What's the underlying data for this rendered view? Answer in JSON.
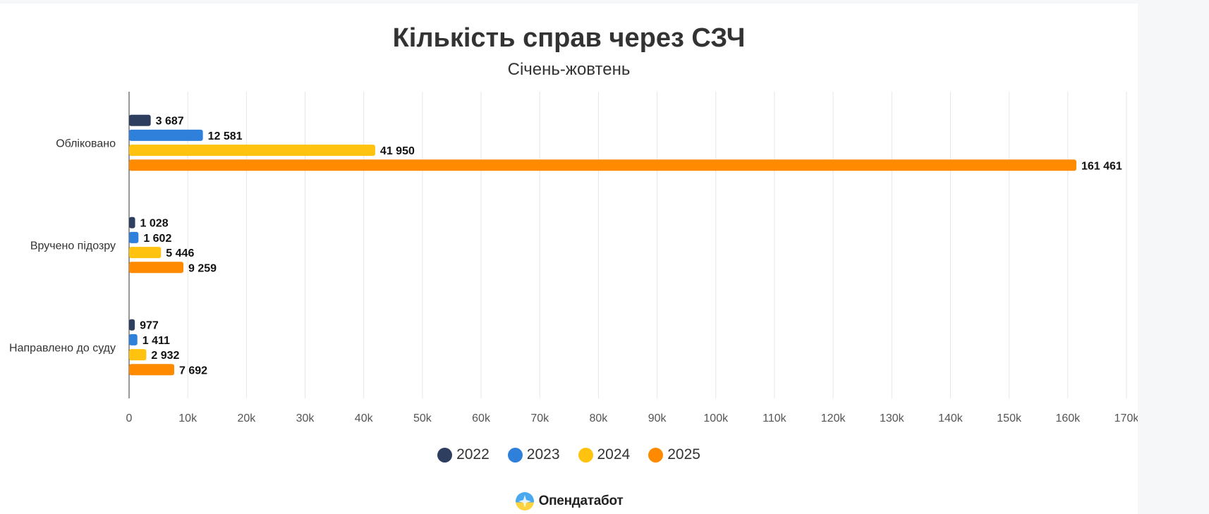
{
  "colors": {
    "s2022": "#2e3e5e",
    "s2023": "#2f80db",
    "s2024": "#ffc20e",
    "s2025": "#ff8a00"
  },
  "logo_text": "Опендатабот",
  "chart_data": {
    "type": "bar",
    "orientation": "horizontal",
    "title": "Кількість справ через СЗЧ",
    "subtitle": "Січень-жовтень",
    "categories": [
      "Обліковано",
      "Вручено підозру",
      "Направлено до суду"
    ],
    "series": [
      {
        "name": "2022",
        "color": "#2e3e5e",
        "values": [
          3687,
          1028,
          977
        ],
        "labels": [
          "3 687",
          "1 028",
          "977"
        ]
      },
      {
        "name": "2023",
        "color": "#2f80db",
        "values": [
          12581,
          1602,
          1411
        ],
        "labels": [
          "12 581",
          "1 602",
          "1 411"
        ]
      },
      {
        "name": "2024",
        "color": "#ffc20e",
        "values": [
          41950,
          5446,
          2932
        ],
        "labels": [
          "41 950",
          "5 446",
          "2 932"
        ]
      },
      {
        "name": "2025",
        "color": "#ff8a00",
        "values": [
          161461,
          9259,
          7692
        ],
        "labels": [
          "161 461",
          "9 259",
          "7 692"
        ]
      }
    ],
    "xlim": [
      0,
      170000
    ],
    "xticks": [
      0,
      10000,
      20000,
      30000,
      40000,
      50000,
      60000,
      70000,
      80000,
      90000,
      100000,
      110000,
      120000,
      130000,
      140000,
      150000,
      160000,
      170000
    ],
    "xtick_labels": [
      "0",
      "10k",
      "20k",
      "30k",
      "40k",
      "50k",
      "60k",
      "70k",
      "80k",
      "90k",
      "100k",
      "110k",
      "120k",
      "130k",
      "140k",
      "150k",
      "160k",
      "170k"
    ],
    "grid": true,
    "legend": "bottom-center"
  }
}
